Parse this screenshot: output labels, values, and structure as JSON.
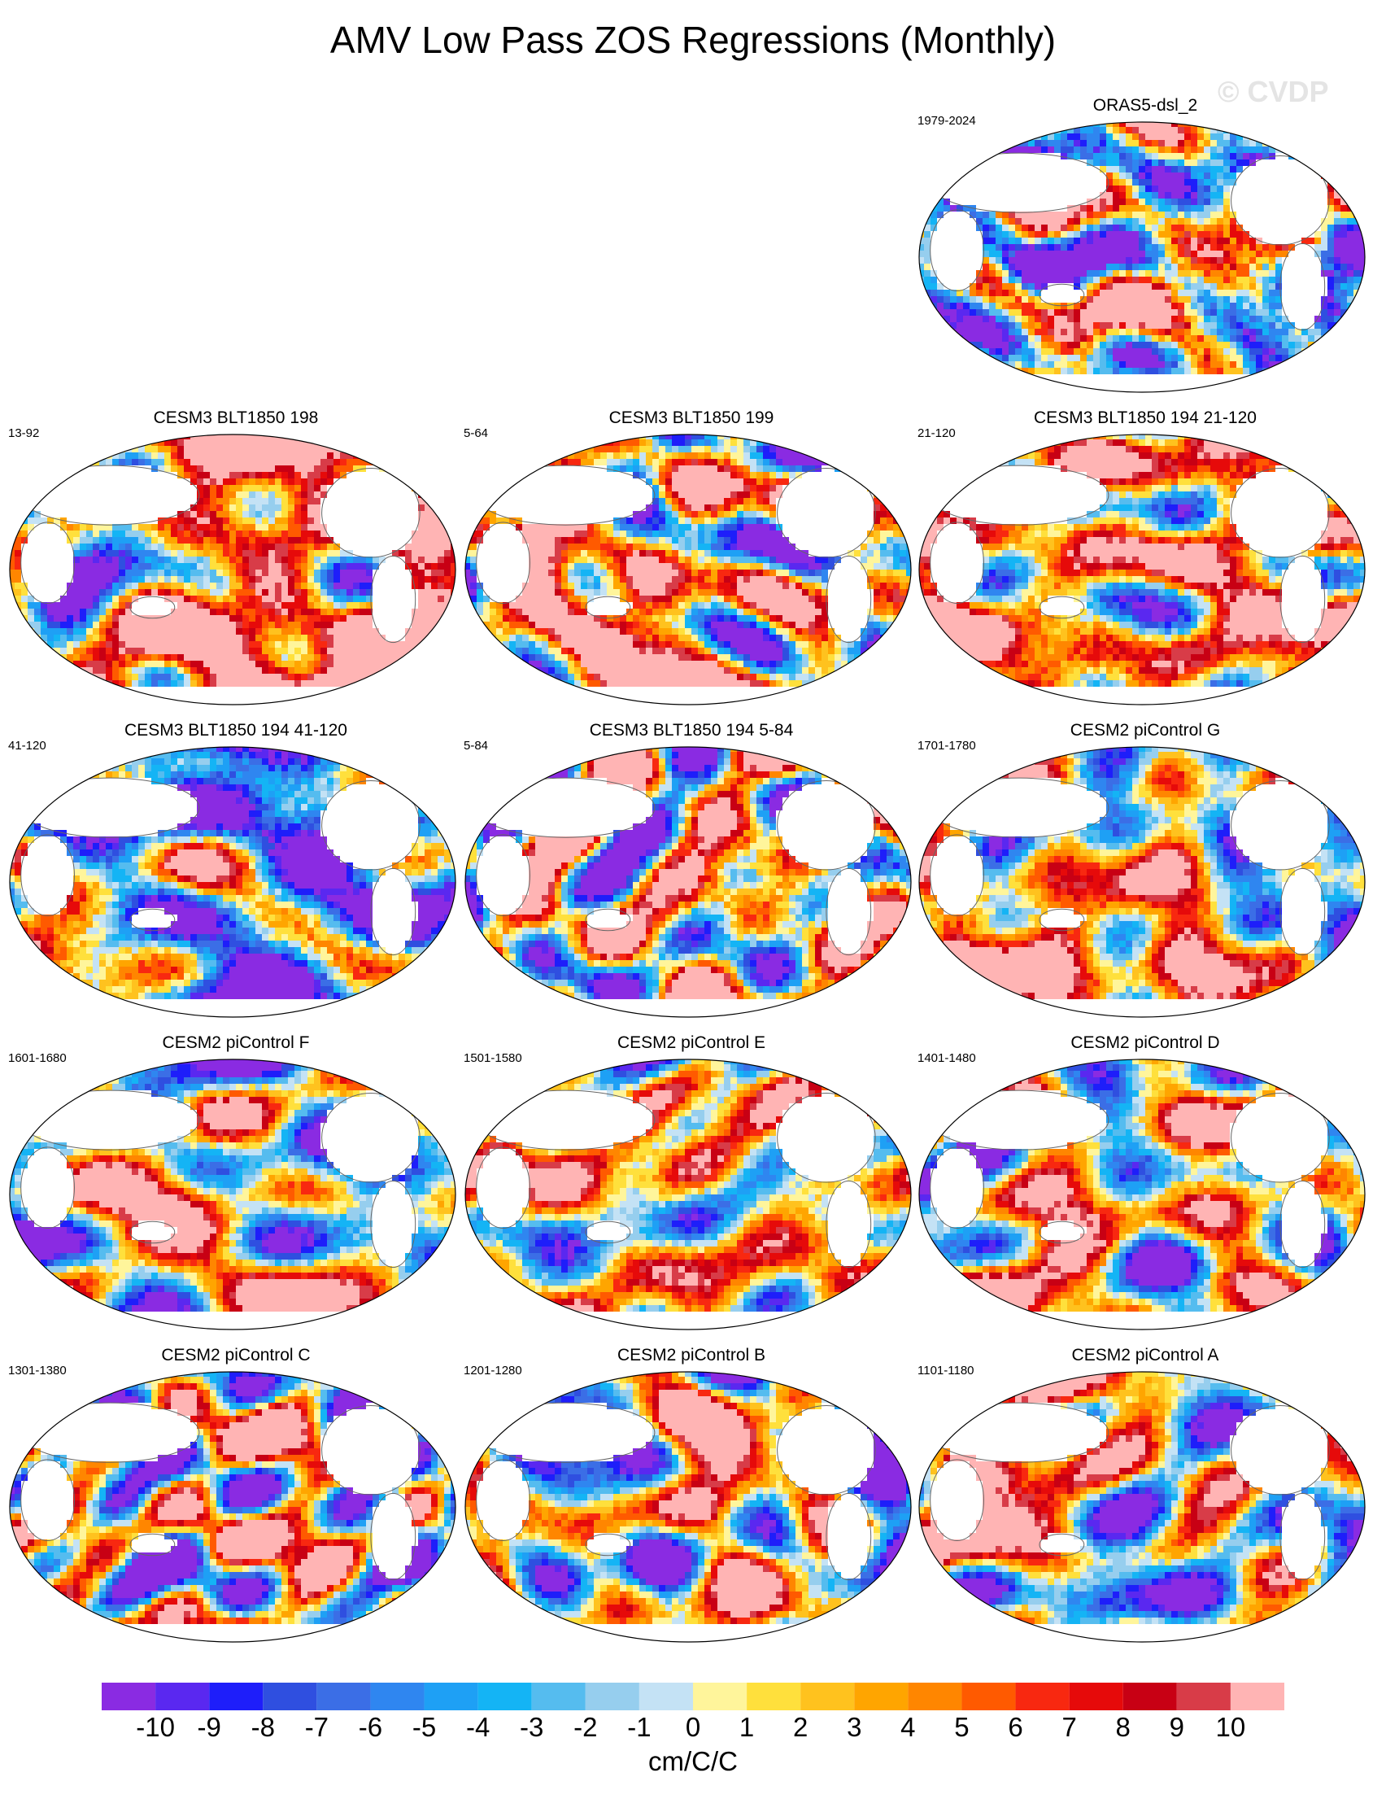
{
  "title": "AMV Low Pass ZOS Regressions (Monthly)",
  "watermark": "© CVDP",
  "panels": [
    {
      "name": "ORAS5-dsl_2",
      "years": "1979-2024",
      "seed": 11,
      "bias": -0.2,
      "noise": 1.6
    },
    {
      "name": "CESM3 BLT1850 198",
      "years": "13-92",
      "seed": 23,
      "bias": 0.9,
      "noise": 1.1
    },
    {
      "name": "CESM3 BLT1850 199",
      "years": "5-64",
      "seed": 37,
      "bias": 0.6,
      "noise": 1.2
    },
    {
      "name": "CESM3 BLT1850 194 21-120",
      "years": "21-120",
      "seed": 41,
      "bias": 0.7,
      "noise": 1.1
    },
    {
      "name": "CESM3 BLT1850 194 41-120",
      "years": "41-120",
      "seed": 53,
      "bias": -0.4,
      "noise": 1.2
    },
    {
      "name": "CESM3 BLT1850 194 5-84",
      "years": "5-84",
      "seed": 61,
      "bias": 0.3,
      "noise": 1.2
    },
    {
      "name": "CESM2 piControl G",
      "years": "1701-1780",
      "seed": 71,
      "bias": 0.2,
      "noise": 0.9
    },
    {
      "name": "CESM2 piControl F",
      "years": "1601-1680",
      "seed": 83,
      "bias": 0.0,
      "noise": 0.9
    },
    {
      "name": "CESM2 piControl E",
      "years": "1501-1580",
      "seed": 97,
      "bias": 0.3,
      "noise": 0.9
    },
    {
      "name": "CESM2 piControl D",
      "years": "1401-1480",
      "seed": 101,
      "bias": 0.2,
      "noise": 0.9
    },
    {
      "name": "CESM2 piControl C",
      "years": "1301-1380",
      "seed": 113,
      "bias": 0.1,
      "noise": 0.9
    },
    {
      "name": "CESM2 piControl B",
      "years": "1201-1280",
      "seed": 127,
      "bias": 0.1,
      "noise": 0.9
    },
    {
      "name": "CESM2 piControl A",
      "years": "1101-1180",
      "seed": 131,
      "bias": 0.1,
      "noise": 0.9
    }
  ],
  "colorbar": {
    "labels": [
      "-10",
      "-9",
      "-8",
      "-7",
      "-6",
      "-5",
      "-4",
      "-3",
      "-2",
      "-1",
      "0",
      "1",
      "2",
      "3",
      "4",
      "5",
      "6",
      "7",
      "8",
      "9",
      "10"
    ],
    "colors": [
      "#8a2be2",
      "#5a28f0",
      "#1e1efa",
      "#2f4fe0",
      "#3b6ee6",
      "#2f86f0",
      "#1ea0f5",
      "#14b4f5",
      "#55bcef",
      "#96ceee",
      "#c4e2f5",
      "#fff59b",
      "#ffe03c",
      "#ffc21e",
      "#ffa500",
      "#ff8600",
      "#ff5a00",
      "#f82810",
      "#e60a0a",
      "#c80014",
      "#d83c48",
      "#ffb4b4"
    ],
    "units": "cm/C/C"
  }
}
